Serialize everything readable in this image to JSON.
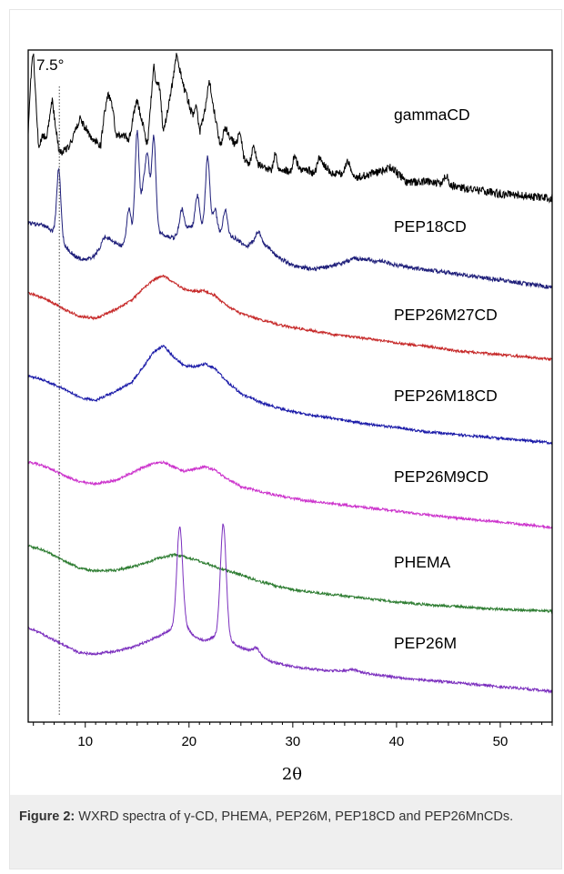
{
  "chart_data": {
    "type": "line",
    "title": "",
    "xlabel": "2θ",
    "ylabel": "",
    "xlim": [
      4.5,
      55
    ],
    "x_ticks": [
      10,
      20,
      30,
      40,
      50
    ],
    "x_tick_labels": [
      "10",
      "20",
      "30",
      "40",
      "50"
    ],
    "y_ticks_shown": false,
    "grid": false,
    "legend": "labels placed beside each curve",
    "annotation": {
      "text": "7.5°",
      "x": 7.5,
      "style": "dotted vertical line"
    },
    "series": [
      {
        "name": "gammaCD",
        "color": "#000000",
        "points": [
          [
            4.5,
            150
          ],
          [
            5,
            70
          ],
          [
            5.5,
            160
          ],
          [
            6.2,
            140
          ],
          [
            6.8,
            110
          ],
          [
            7.5,
            168
          ],
          [
            8.5,
            160
          ],
          [
            9.5,
            130
          ],
          [
            10.5,
            150
          ],
          [
            11.5,
            160
          ],
          [
            12.2,
            85
          ],
          [
            13,
            150
          ],
          [
            14,
            150
          ],
          [
            15,
            110
          ],
          [
            16,
            160
          ],
          [
            16.6,
            70
          ],
          [
            17.5,
            150
          ],
          [
            18.8,
            65
          ],
          [
            19.8,
            110
          ],
          [
            21,
            150
          ],
          [
            22,
            95
          ],
          [
            23,
            160
          ],
          [
            24,
            150
          ],
          [
            25,
            170
          ],
          [
            26,
            185
          ],
          [
            27,
            180
          ],
          [
            28,
            190
          ],
          [
            29,
            185
          ],
          [
            30,
            190
          ],
          [
            31,
            185
          ],
          [
            32,
            190
          ],
          [
            33,
            182
          ],
          [
            34,
            192
          ],
          [
            35,
            190
          ],
          [
            36,
            195
          ],
          [
            38,
            190
          ],
          [
            39.5,
            185
          ],
          [
            41,
            200
          ],
          [
            43,
            200
          ],
          [
            45,
            203
          ],
          [
            47,
            208
          ],
          [
            50,
            213
          ],
          [
            52,
            215
          ],
          [
            55,
            218
          ]
        ],
        "peaks": [
          [
            4.8,
            78
          ],
          [
            6.3,
            150
          ],
          [
            12.2,
            100
          ],
          [
            14.3,
            150
          ],
          [
            15.2,
            120
          ],
          [
            16.6,
            72
          ],
          [
            17.2,
            100
          ],
          [
            18.9,
            65
          ],
          [
            19.9,
            110
          ],
          [
            20.7,
            120
          ],
          [
            21.9,
            94
          ],
          [
            23.5,
            140
          ],
          [
            24.9,
            145
          ],
          [
            26.2,
            160
          ],
          [
            28.3,
            170
          ],
          [
            30.2,
            170
          ],
          [
            32.6,
            172
          ],
          [
            35.3,
            176
          ],
          [
            39.5,
            183
          ],
          [
            44.8,
            192
          ]
        ]
      },
      {
        "name": "PEP18CD",
        "color": "#1f1f7a",
        "points": [
          [
            4.5,
            245
          ],
          [
            6,
            248
          ],
          [
            7,
            255
          ],
          [
            8,
            270
          ],
          [
            9,
            282
          ],
          [
            10,
            286
          ],
          [
            10.8,
            282
          ],
          [
            11.5,
            272
          ],
          [
            12.2,
            262
          ],
          [
            13,
            268
          ],
          [
            13.5,
            270
          ],
          [
            14.5,
            260
          ],
          [
            15.5,
            255
          ],
          [
            16.5,
            252
          ],
          [
            17.5,
            258
          ],
          [
            18.5,
            262
          ],
          [
            19.5,
            250
          ],
          [
            20.5,
            250
          ],
          [
            21.5,
            248
          ],
          [
            22.5,
            255
          ],
          [
            23.5,
            258
          ],
          [
            24.5,
            262
          ],
          [
            25.5,
            272
          ],
          [
            26.5,
            262
          ],
          [
            27.5,
            270
          ],
          [
            28.5,
            282
          ],
          [
            30,
            292
          ],
          [
            32,
            296
          ],
          [
            34,
            292
          ],
          [
            36,
            285
          ],
          [
            38,
            285
          ],
          [
            40,
            292
          ],
          [
            42,
            295
          ],
          [
            44,
            298
          ],
          [
            47,
            303
          ],
          [
            50,
            308
          ],
          [
            55,
            316
          ]
        ],
        "peaks": [
          [
            7.45,
            186
          ],
          [
            11.8,
            262
          ],
          [
            14.2,
            230
          ],
          [
            15.0,
            145
          ],
          [
            15.6,
            210
          ],
          [
            16.0,
            175
          ],
          [
            16.6,
            150
          ],
          [
            19.3,
            230
          ],
          [
            20.8,
            215
          ],
          [
            21.8,
            172
          ],
          [
            22.5,
            230
          ],
          [
            23.5,
            230
          ],
          [
            26.7,
            255
          ],
          [
            35.7,
            285
          ],
          [
            37.9,
            288
          ]
        ]
      },
      {
        "name": "PEP26M27CD",
        "color": "#c62828",
        "points": [
          [
            4.5,
            322
          ],
          [
            6,
            328
          ],
          [
            8,
            340
          ],
          [
            9.5,
            348
          ],
          [
            11,
            350
          ],
          [
            13,
            340
          ],
          [
            14.5,
            330
          ],
          [
            15.5,
            318
          ],
          [
            16.5,
            308
          ],
          [
            17.5,
            303
          ],
          [
            18.5,
            310
          ],
          [
            19.5,
            318
          ],
          [
            20.5,
            320
          ],
          [
            21.5,
            320
          ],
          [
            22.5,
            325
          ],
          [
            23.5,
            335
          ],
          [
            25,
            345
          ],
          [
            27,
            352
          ],
          [
            29,
            358
          ],
          [
            31,
            362
          ],
          [
            34,
            368
          ],
          [
            37,
            372
          ],
          [
            40,
            377
          ],
          [
            43,
            381
          ],
          [
            46,
            386
          ],
          [
            50,
            390
          ],
          [
            55,
            395
          ]
        ]
      },
      {
        "name": "PEP26M18CD",
        "color": "#1a1aa8",
        "points": [
          [
            4.5,
            413
          ],
          [
            6,
            418
          ],
          [
            8,
            428
          ],
          [
            9.5,
            437
          ],
          [
            11,
            440
          ],
          [
            13,
            430
          ],
          [
            14.5,
            420
          ],
          [
            15.5,
            405
          ],
          [
            16.5,
            388
          ],
          [
            17.5,
            380
          ],
          [
            18.5,
            392
          ],
          [
            19.5,
            402
          ],
          [
            20.5,
            403
          ],
          [
            21.5,
            400
          ],
          [
            22.5,
            405
          ],
          [
            23.5,
            418
          ],
          [
            25,
            433
          ],
          [
            27,
            443
          ],
          [
            29,
            450
          ],
          [
            31,
            455
          ],
          [
            34,
            460
          ],
          [
            37,
            466
          ],
          [
            40,
            470
          ],
          [
            43,
            475
          ],
          [
            46,
            478
          ],
          [
            50,
            482
          ],
          [
            55,
            487
          ]
        ]
      },
      {
        "name": "PEP26M9CD",
        "color": "#cc33cc",
        "points": [
          [
            4.5,
            508
          ],
          [
            6,
            512
          ],
          [
            8,
            523
          ],
          [
            9.5,
            530
          ],
          [
            11,
            532
          ],
          [
            13,
            528
          ],
          [
            14.5,
            520
          ],
          [
            15.5,
            514
          ],
          [
            16.5,
            510
          ],
          [
            17.5,
            508
          ],
          [
            18.5,
            513
          ],
          [
            19.5,
            518
          ],
          [
            20.5,
            516
          ],
          [
            21.5,
            513
          ],
          [
            22.5,
            517
          ],
          [
            23.5,
            525
          ],
          [
            25,
            535
          ],
          [
            27,
            541
          ],
          [
            29,
            546
          ],
          [
            31,
            550
          ],
          [
            34,
            554
          ],
          [
            37,
            558
          ],
          [
            40,
            562
          ],
          [
            43,
            566
          ],
          [
            46,
            570
          ],
          [
            50,
            574
          ],
          [
            55,
            580
          ]
        ]
      },
      {
        "name": "PHEMA",
        "color": "#2e7d32",
        "points": [
          [
            4.5,
            600
          ],
          [
            6,
            605
          ],
          [
            8,
            617
          ],
          [
            9.5,
            625
          ],
          [
            11,
            628
          ],
          [
            13,
            627
          ],
          [
            15,
            622
          ],
          [
            17,
            614
          ],
          [
            18.5,
            610
          ],
          [
            19.5,
            612
          ],
          [
            21,
            617
          ],
          [
            23,
            625
          ],
          [
            25,
            632
          ],
          [
            27,
            640
          ],
          [
            29,
            646
          ],
          [
            31,
            650
          ],
          [
            34,
            654
          ],
          [
            37,
            658
          ],
          [
            40,
            662
          ],
          [
            43,
            665
          ],
          [
            46,
            667
          ],
          [
            50,
            670
          ],
          [
            55,
            672
          ]
        ]
      },
      {
        "name": "PEP26M",
        "color": "#7b2fbe",
        "points": [
          [
            4.5,
            690
          ],
          [
            6,
            698
          ],
          [
            8,
            710
          ],
          [
            9.5,
            718
          ],
          [
            11,
            719
          ],
          [
            13,
            716
          ],
          [
            15,
            710
          ],
          [
            17,
            700
          ],
          [
            18.3,
            692
          ],
          [
            19.6,
            688
          ],
          [
            20.5,
            700
          ],
          [
            21.5,
            705
          ],
          [
            22.5,
            700
          ],
          [
            24,
            705
          ],
          [
            25,
            712
          ],
          [
            26,
            716
          ],
          [
            27,
            722
          ],
          [
            28,
            728
          ],
          [
            30,
            733
          ],
          [
            33,
            737
          ],
          [
            36,
            738
          ],
          [
            38,
            742
          ],
          [
            41,
            746
          ],
          [
            44,
            749
          ],
          [
            47,
            752
          ],
          [
            50,
            755
          ],
          [
            55,
            760
          ]
        ],
        "peaks": [
          [
            19.1,
            580
          ],
          [
            23.3,
            576
          ],
          [
            26.5,
            712
          ],
          [
            35.8,
            736
          ]
        ]
      }
    ]
  },
  "caption": {
    "lead": "Figure 2:",
    "text": " WXRD spectra of γ-CD, PHEMA, PEP26M, PEP18CD and PEP26MnCDs."
  }
}
